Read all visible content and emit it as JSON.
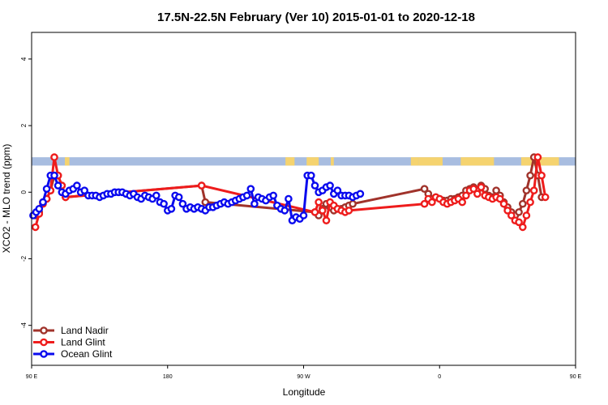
{
  "chart_data": {
    "type": "line",
    "title": "17.5N-22.5N February (Ver 10)   2015-01-01 to 2020-12-18",
    "xlabel": "Longitude",
    "ylabel": "XCO2 - MLO trend (ppm)",
    "xlim": [
      90,
      450
    ],
    "ylim": [
      -5.2,
      4.8
    ],
    "y_ticks": [
      -4,
      -2,
      0,
      2,
      4
    ],
    "x_ticks": [
      {
        "value": 90,
        "label": "90 E"
      },
      {
        "value": 180,
        "label": "180"
      },
      {
        "value": 270,
        "label": "90 W"
      },
      {
        "value": 360,
        "label": "0"
      },
      {
        "value": 450,
        "label": "90 E"
      },
      {
        "value": 540,
        "label": "180"
      }
    ],
    "grid": false,
    "legend_position": "bottom-left",
    "land_sea_strip": {
      "y_range": [
        0.8,
        1.05
      ],
      "ocean_color": "#a8bde0",
      "land_color": "#f5d36f",
      "land_segments": [
        [
          112,
          115
        ],
        [
          258,
          264
        ],
        [
          272,
          280
        ],
        [
          288,
          290
        ],
        [
          341,
          346
        ],
        [
          346,
          362
        ],
        [
          374,
          396
        ],
        [
          414,
          439
        ],
        [
          456,
          465
        ]
      ]
    },
    "series": [
      {
        "name": "Land Nadir",
        "color": "#a0332b",
        "points": [
          [
            92.5,
            -0.7
          ],
          [
            95,
            -0.6
          ],
          [
            97.5,
            -0.3
          ],
          [
            100,
            -0.2
          ],
          [
            102.5,
            0.05
          ],
          [
            105,
            0.5
          ],
          [
            107.5,
            0.5
          ],
          [
            110,
            0.2
          ],
          [
            112.5,
            -0.15
          ],
          [
            202.5,
            0.2
          ],
          [
            205,
            -0.3
          ],
          [
            277.5,
            -0.6
          ],
          [
            280,
            -0.7
          ],
          [
            282.5,
            -0.5
          ],
          [
            285,
            -0.35
          ],
          [
            287.5,
            -0.45
          ],
          [
            290,
            -0.55
          ],
          [
            292.5,
            -0.5
          ],
          [
            295,
            -0.5
          ],
          [
            297.5,
            -0.45
          ],
          [
            300,
            -0.4
          ],
          [
            302.5,
            -0.35
          ],
          [
            350,
            0.1
          ],
          [
            352.5,
            -0.05
          ],
          [
            355,
            -0.2
          ],
          [
            357.5,
            -0.15
          ],
          [
            360,
            -0.2
          ],
          [
            362.5,
            -0.25
          ],
          [
            365,
            -0.25
          ],
          [
            367.5,
            -0.2
          ],
          [
            370,
            -0.2
          ],
          [
            372.5,
            -0.15
          ],
          [
            375,
            -0.1
          ],
          [
            377.5,
            0.05
          ],
          [
            380,
            0.1
          ],
          [
            382.5,
            0.15
          ],
          [
            385,
            0.05
          ],
          [
            387.5,
            0.2
          ],
          [
            390,
            0.1
          ],
          [
            392.5,
            -0.1
          ],
          [
            395,
            -0.15
          ],
          [
            397.5,
            0.05
          ],
          [
            400,
            -0.1
          ],
          [
            402.5,
            -0.3
          ],
          [
            405,
            -0.45
          ],
          [
            407.5,
            -0.6
          ],
          [
            410,
            -0.7
          ],
          [
            412.5,
            -0.6
          ],
          [
            415,
            -0.35
          ],
          [
            417.5,
            0.05
          ],
          [
            420,
            0.5
          ],
          [
            422.5,
            1.05
          ],
          [
            425,
            0.5
          ],
          [
            427.5,
            -0.15
          ]
        ]
      },
      {
        "name": "Land Glint",
        "color": "#ee1c1c",
        "points": [
          [
            92.5,
            -1.05
          ],
          [
            95,
            -0.65
          ],
          [
            97.5,
            -0.35
          ],
          [
            100,
            -0.2
          ],
          [
            102.5,
            0.05
          ],
          [
            105,
            1.05
          ],
          [
            107.5,
            0.5
          ],
          [
            110,
            0.2
          ],
          [
            112.5,
            -0.15
          ],
          [
            202.5,
            0.2
          ],
          [
            277.5,
            -0.6
          ],
          [
            280,
            -0.3
          ],
          [
            282.5,
            -0.55
          ],
          [
            285,
            -0.85
          ],
          [
            287.5,
            -0.3
          ],
          [
            290,
            -0.4
          ],
          [
            292.5,
            -0.5
          ],
          [
            295,
            -0.55
          ],
          [
            297.5,
            -0.6
          ],
          [
            300,
            -0.55
          ],
          [
            350,
            -0.35
          ],
          [
            352.5,
            -0.2
          ],
          [
            355,
            -0.3
          ],
          [
            357.5,
            -0.15
          ],
          [
            360,
            -0.2
          ],
          [
            362.5,
            -0.3
          ],
          [
            365,
            -0.35
          ],
          [
            367.5,
            -0.3
          ],
          [
            370,
            -0.25
          ],
          [
            372.5,
            -0.2
          ],
          [
            375,
            -0.3
          ],
          [
            377.5,
            -0.1
          ],
          [
            380,
            0.05
          ],
          [
            382.5,
            0.1
          ],
          [
            385,
            -0.05
          ],
          [
            387.5,
            0.15
          ],
          [
            390,
            -0.1
          ],
          [
            392.5,
            -0.15
          ],
          [
            395,
            -0.2
          ],
          [
            397.5,
            -0.15
          ],
          [
            400,
            -0.2
          ],
          [
            402.5,
            -0.35
          ],
          [
            405,
            -0.55
          ],
          [
            407.5,
            -0.7
          ],
          [
            410,
            -0.85
          ],
          [
            412.5,
            -0.9
          ],
          [
            415,
            -1.05
          ],
          [
            417.5,
            -0.7
          ],
          [
            420,
            -0.3
          ],
          [
            422.5,
            0.05
          ],
          [
            425,
            1.05
          ],
          [
            427.5,
            0.5
          ],
          [
            430,
            -0.15
          ]
        ]
      },
      {
        "name": "Ocean Glint",
        "color": "#0a0aee",
        "points": [
          [
            91,
            -0.7
          ],
          [
            93,
            -0.6
          ],
          [
            95,
            -0.5
          ],
          [
            97.5,
            -0.3
          ],
          [
            100,
            0.1
          ],
          [
            102.5,
            0.5
          ],
          [
            105,
            0.5
          ],
          [
            107.5,
            0.2
          ],
          [
            110,
            0
          ],
          [
            112.5,
            -0.05
          ],
          [
            115,
            0.05
          ],
          [
            117.5,
            0.1
          ],
          [
            120,
            0.2
          ],
          [
            122.5,
            0
          ],
          [
            125,
            0.05
          ],
          [
            127.5,
            -0.1
          ],
          [
            130,
            -0.1
          ],
          [
            132.5,
            -0.1
          ],
          [
            135,
            -0.15
          ],
          [
            137.5,
            -0.1
          ],
          [
            140,
            -0.05
          ],
          [
            142.5,
            -0.05
          ],
          [
            145,
            0
          ],
          [
            147.5,
            0
          ],
          [
            150,
            0
          ],
          [
            152.5,
            -0.05
          ],
          [
            155,
            -0.1
          ],
          [
            157.5,
            -0.05
          ],
          [
            160,
            -0.15
          ],
          [
            162.5,
            -0.2
          ],
          [
            165,
            -0.1
          ],
          [
            167.5,
            -0.15
          ],
          [
            170,
            -0.2
          ],
          [
            172.5,
            -0.1
          ],
          [
            175,
            -0.3
          ],
          [
            177.5,
            -0.35
          ],
          [
            180,
            -0.55
          ],
          [
            182.5,
            -0.5
          ],
          [
            185,
            -0.1
          ],
          [
            187.5,
            -0.15
          ],
          [
            190,
            -0.35
          ],
          [
            192.5,
            -0.5
          ],
          [
            195,
            -0.45
          ],
          [
            197.5,
            -0.5
          ],
          [
            200,
            -0.45
          ],
          [
            202.5,
            -0.5
          ],
          [
            205,
            -0.55
          ],
          [
            207.5,
            -0.45
          ],
          [
            210,
            -0.45
          ],
          [
            212.5,
            -0.4
          ],
          [
            215,
            -0.35
          ],
          [
            217.5,
            -0.3
          ],
          [
            220,
            -0.35
          ],
          [
            222.5,
            -0.3
          ],
          [
            225,
            -0.25
          ],
          [
            227.5,
            -0.2
          ],
          [
            230,
            -0.15
          ],
          [
            232.5,
            -0.1
          ],
          [
            235,
            0.1
          ],
          [
            237.5,
            -0.35
          ],
          [
            240,
            -0.15
          ],
          [
            242.5,
            -0.2
          ],
          [
            245,
            -0.25
          ],
          [
            247.5,
            -0.15
          ],
          [
            250,
            -0.1
          ],
          [
            252.5,
            -0.4
          ],
          [
            255,
            -0.5
          ],
          [
            257.5,
            -0.55
          ],
          [
            260,
            -0.2
          ],
          [
            262.5,
            -0.85
          ],
          [
            265,
            -0.75
          ],
          [
            267.5,
            -0.8
          ],
          [
            270,
            -0.7
          ],
          [
            272.5,
            0.5
          ],
          [
            275,
            0.5
          ],
          [
            277.5,
            0.2
          ],
          [
            280,
            0
          ],
          [
            282.5,
            0.05
          ],
          [
            285,
            0.15
          ],
          [
            287.5,
            0.2
          ],
          [
            290,
            -0.05
          ],
          [
            292.5,
            0.05
          ],
          [
            295,
            -0.1
          ],
          [
            297.5,
            -0.1
          ],
          [
            300,
            -0.1
          ],
          [
            302.5,
            -0.15
          ],
          [
            305,
            -0.1
          ],
          [
            307.5,
            -0.05
          ]
        ]
      }
    ]
  }
}
